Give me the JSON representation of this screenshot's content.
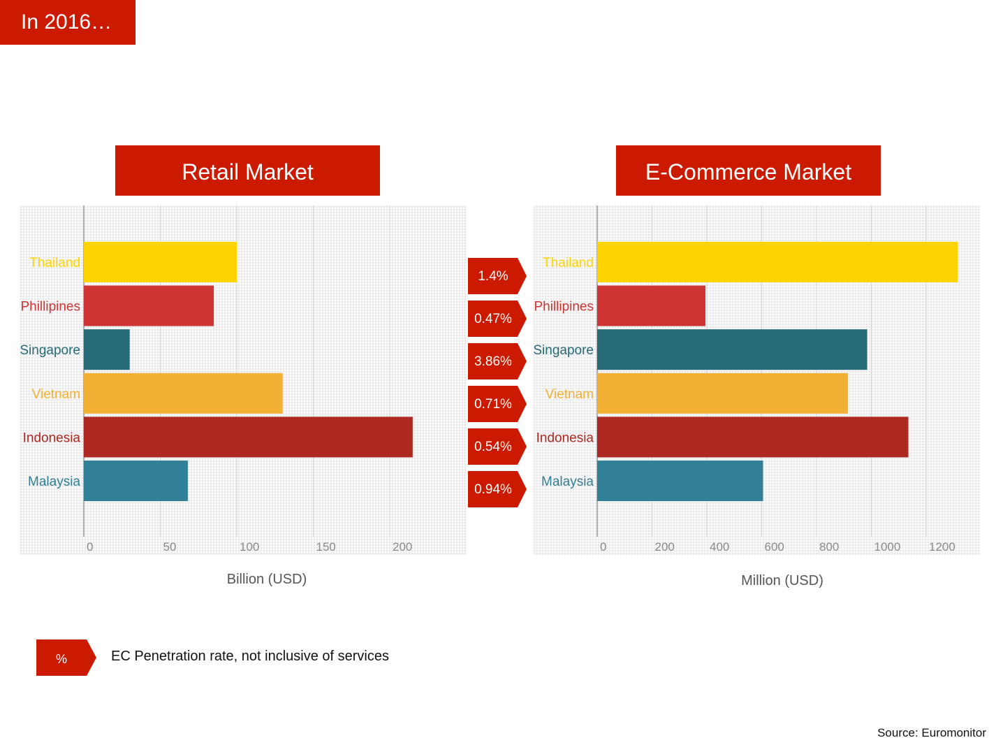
{
  "header_badge": "In 2016…",
  "legend": {
    "marker": "%",
    "text": "EC Penetration rate, not inclusive of services"
  },
  "source": "Source: Euromonitor",
  "penetration_rates": [
    "1.4%",
    "0.47%",
    "3.86%",
    "0.71%",
    "0.54%",
    "0.94%"
  ],
  "colors": {
    "accent_red": "#cc1a00",
    "Thailand": "#ffd400",
    "Phillipines": "#cf3535",
    "Singapore": "#256a76",
    "Vietnam": "#f2b034",
    "Indonesia": "#ad2820",
    "Malaysia": "#327f98"
  },
  "chart_data": [
    {
      "type": "bar",
      "orientation": "horizontal",
      "title": "Retail Market",
      "xlabel": "Billion (USD)",
      "categories": [
        "Thailand",
        "Phillipines",
        "Singapore",
        "Vietnam",
        "Indonesia",
        "Malaysia"
      ],
      "values": [
        100,
        85,
        30,
        130,
        215,
        68
      ],
      "xlim": [
        0,
        250
      ],
      "xticks": [
        0,
        50,
        100,
        150,
        200
      ],
      "grid": true
    },
    {
      "type": "bar",
      "orientation": "horizontal",
      "title": "E-Commerce Market",
      "xlabel": "Million (USD)",
      "categories": [
        "Thailand",
        "Phillipines",
        "Singapore",
        "Vietnam",
        "Indonesia",
        "Malaysia"
      ],
      "values": [
        1315,
        395,
        985,
        915,
        1135,
        605
      ],
      "xlim": [
        0,
        1400
      ],
      "xticks": [
        0,
        200,
        400,
        600,
        800,
        1000,
        1200
      ],
      "grid": true
    }
  ]
}
